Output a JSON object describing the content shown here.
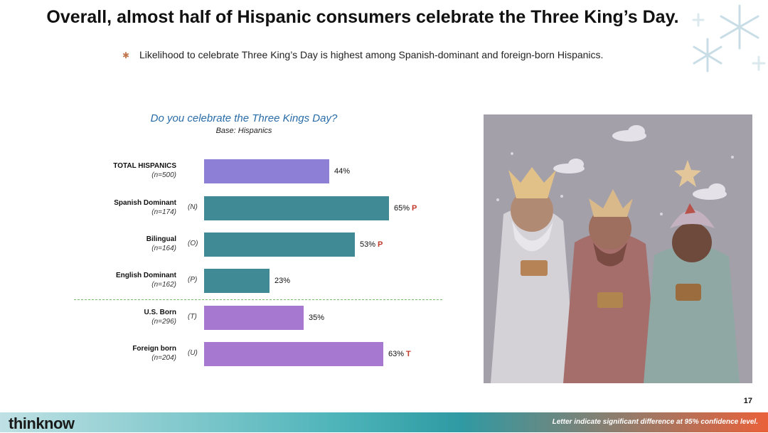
{
  "slide": {
    "title": "Overall, almost half of Hispanic consumers celebrate the Three King’s Day.",
    "bullet": "Likelihood to celebrate Three King’s Day is highest among Spanish-dominant and foreign-born Hispanics.",
    "page_number": "17",
    "logo": "thinknow",
    "footnote": "Letter indicate significant difference at 95% confidence level."
  },
  "chart_data": {
    "type": "bar",
    "orientation": "horizontal",
    "title": "Do you celebrate the Three Kings Day?",
    "subtitle": "Base: Hispanics",
    "xlim": [
      0,
      100
    ],
    "grid": false,
    "categories": [
      {
        "name": "TOTAL HISPANICS",
        "base": "(n=500)",
        "letter": "",
        "value": 44,
        "label": "44%",
        "sig": "",
        "color": "#8e7fd6"
      },
      {
        "name": "Spanish Dominant",
        "base": "(n=174)",
        "letter": "(N)",
        "value": 65,
        "label": "65%",
        "sig": "P",
        "color": "#3f8a95"
      },
      {
        "name": "Bilingual",
        "base": "(n=164)",
        "letter": "(O)",
        "value": 53,
        "label": "53%",
        "sig": "P",
        "color": "#3f8a95"
      },
      {
        "name": "English Dominant",
        "base": "(n=162)",
        "letter": "(P)",
        "value": 23,
        "label": "23%",
        "sig": "",
        "color": "#3f8a95"
      },
      {
        "name": "U.S. Born",
        "base": "(n=296)",
        "letter": "(T)",
        "value": 35,
        "label": "35%",
        "sig": "",
        "color": "#a678d0"
      },
      {
        "name": "Foreign born",
        "base": "(n=204)",
        "letter": "(U)",
        "value": 63,
        "label": "63%",
        "sig": "T",
        "color": "#a678d0"
      }
    ]
  }
}
